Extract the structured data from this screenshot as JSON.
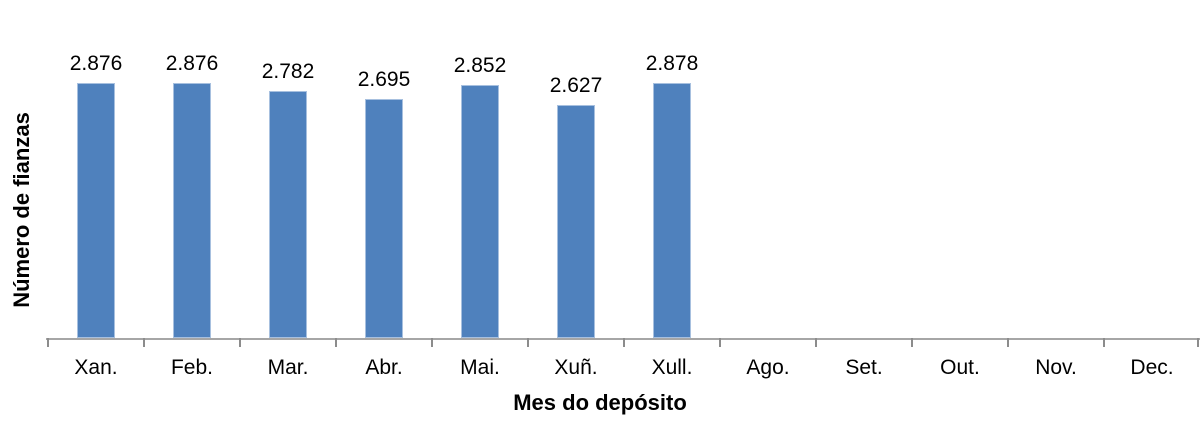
{
  "chart_data": {
    "type": "bar",
    "categories": [
      "Xan.",
      "Feb.",
      "Mar.",
      "Abr.",
      "Mai.",
      "Xuñ.",
      "Xull.",
      "Ago.",
      "Set.",
      "Out.",
      "Nov.",
      "Dec."
    ],
    "values": [
      2876,
      2876,
      2782,
      2695,
      2852,
      2627,
      2878,
      null,
      null,
      null,
      null,
      null
    ],
    "data_labels": [
      "2.876",
      "2.876",
      "2.782",
      "2.695",
      "2.852",
      "2.627",
      "2.878",
      "",
      "",
      "",
      "",
      ""
    ],
    "xlabel": "Mes do depósito",
    "ylabel": "Número de fianzas",
    "ylim": [
      0,
      3000
    ],
    "grid": false,
    "legend": false,
    "colors": {
      "bar_fill": "#4F81BD",
      "bar_border": "#A7C0DF",
      "axis_line": "#A6A6A6",
      "tick": "#8C8C8C",
      "text": "#000000"
    }
  }
}
